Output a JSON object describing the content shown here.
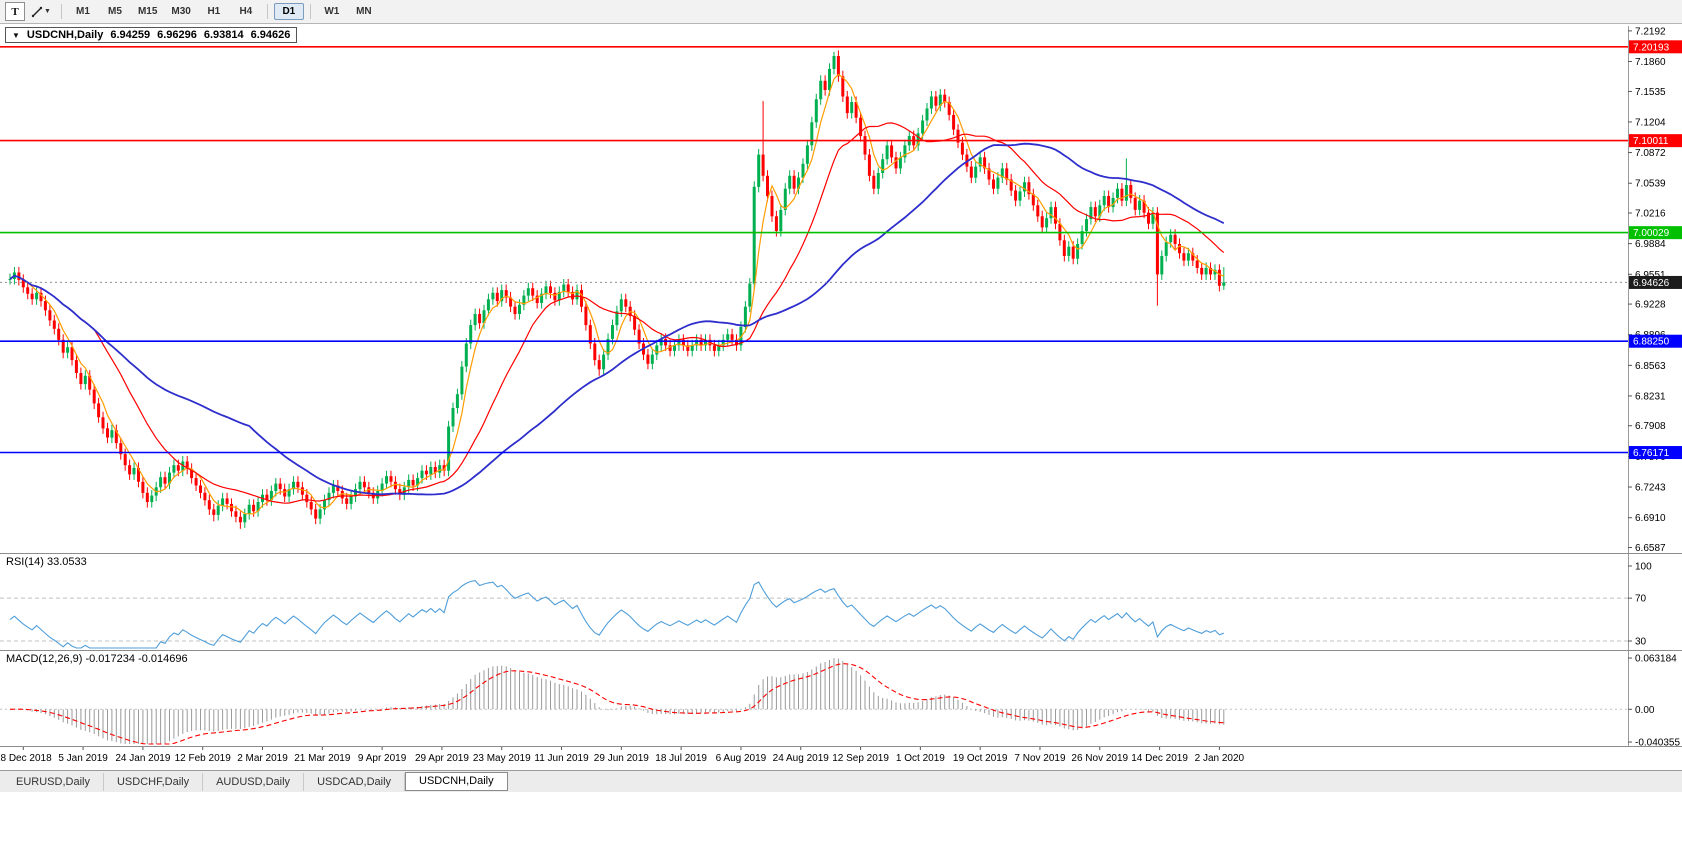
{
  "toolbar": {
    "tool_button_label": "T",
    "timeframes": [
      "M1",
      "M5",
      "M15",
      "M30",
      "H1",
      "H4",
      "D1",
      "W1",
      "MN"
    ],
    "active_timeframe": "D1"
  },
  "header": {
    "collapse_icon": "▼",
    "symbol": "USDCNH,Daily",
    "open": "6.94259",
    "high": "6.96296",
    "low": "6.93814",
    "close": "6.94626"
  },
  "chart_data": {
    "type": "candlestick",
    "symbol": "USDCNH",
    "timeframe": "Daily",
    "y_range": {
      "max": 7.2245,
      "min": 6.6538
    },
    "up_color": "#00b050",
    "down_color": "#ff0000",
    "default_wick": 0.006,
    "closes": [
      6.95,
      6.957,
      6.949,
      6.941,
      6.934,
      6.928,
      6.935,
      6.926,
      6.916,
      6.905,
      6.896,
      6.884,
      6.87,
      6.876,
      6.862,
      6.848,
      6.836,
      6.845,
      6.83,
      6.815,
      6.8,
      6.788,
      6.778,
      6.786,
      6.772,
      6.76,
      6.748,
      6.738,
      6.745,
      6.73,
      6.718,
      6.708,
      6.715,
      6.724,
      6.735,
      6.728,
      6.74,
      6.748,
      6.742,
      6.752,
      6.744,
      6.734,
      6.726,
      6.718,
      6.71,
      6.7,
      6.694,
      6.704,
      6.712,
      6.706,
      6.698,
      6.692,
      6.686,
      6.695,
      6.705,
      6.698,
      6.708,
      6.716,
      6.71,
      6.72,
      6.728,
      6.722,
      6.714,
      6.722,
      6.73,
      6.724,
      6.716,
      6.708,
      6.7,
      6.69,
      6.7,
      6.71,
      6.718,
      6.726,
      6.72,
      6.712,
      6.706,
      6.714,
      6.722,
      6.73,
      6.724,
      6.718,
      6.712,
      6.72,
      6.728,
      6.736,
      6.73,
      6.722,
      6.716,
      6.724,
      6.732,
      6.726,
      6.734,
      6.742,
      6.738,
      6.746,
      6.74,
      6.748,
      6.742,
      6.79,
      6.81,
      6.825,
      6.855,
      6.88,
      6.9,
      6.912,
      6.902,
      6.916,
      6.928,
      6.935,
      6.926,
      6.938,
      6.93,
      6.92,
      6.912,
      6.922,
      6.932,
      6.94,
      6.932,
      6.924,
      6.934,
      6.942,
      6.935,
      6.927,
      6.936,
      6.944,
      6.936,
      6.928,
      6.938,
      6.92,
      6.9,
      6.88,
      6.862,
      6.852,
      6.868,
      6.885,
      6.9,
      6.915,
      6.928,
      6.92,
      6.91,
      6.895,
      6.88,
      6.868,
      6.858,
      6.868,
      6.878,
      6.885,
      6.878,
      6.872,
      6.878,
      6.884,
      6.878,
      6.872,
      6.878,
      6.884,
      6.878,
      6.884,
      6.878,
      6.872,
      6.878,
      6.884,
      6.89,
      6.884,
      6.878,
      6.898,
      6.92,
      6.945,
      7.05,
      7.085,
      7.062,
      7.04,
      7.018,
      7.002,
      7.025,
      7.048,
      7.062,
      7.048,
      7.06,
      7.075,
      7.095,
      7.12,
      7.145,
      7.165,
      7.155,
      7.178,
      7.192,
      7.17,
      7.148,
      7.13,
      7.142,
      7.125,
      7.105,
      7.085,
      7.062,
      7.048,
      7.065,
      7.08,
      7.095,
      7.082,
      7.07,
      7.082,
      7.095,
      7.105,
      7.095,
      7.108,
      7.122,
      7.135,
      7.148,
      7.138,
      7.15,
      7.142,
      7.128,
      7.112,
      7.098,
      7.085,
      7.072,
      7.06,
      7.072,
      7.082,
      7.07,
      7.058,
      7.048,
      7.06,
      7.07,
      7.058,
      7.046,
      7.035,
      7.045,
      7.055,
      7.042,
      7.03,
      7.018,
      7.006,
      7.016,
      7.028,
      7.01,
      6.992,
      6.975,
      6.985,
      6.972,
      6.988,
      7.002,
      7.015,
      7.028,
      7.018,
      7.03,
      7.04,
      7.028,
      7.038,
      7.048,
      7.035,
      7.052,
      7.038,
      7.025,
      7.035,
      7.022,
      7.01,
      7.022,
      6.955,
      6.975,
      6.99,
      6.998,
      6.988,
      6.978,
      6.97,
      6.978,
      6.97,
      6.962,
      6.955,
      6.962,
      6.955,
      6.96,
      6.9426,
      6.9463
    ],
    "spikes": [
      {
        "i": 2,
        "h": 6.963
      },
      {
        "i": 46,
        "l": 6.687
      },
      {
        "i": 52,
        "l": 6.679
      },
      {
        "i": 69,
        "l": 6.684
      },
      {
        "i": 133,
        "l": 6.845
      },
      {
        "i": 170,
        "h": 7.143
      },
      {
        "i": 186,
        "h": 7.1965
      },
      {
        "i": 252,
        "h": 7.081
      },
      {
        "i": 259,
        "l": 6.921
      },
      {
        "i": 274,
        "h": 6.96296,
        "l": 6.93814
      }
    ],
    "levels": [
      {
        "price": 7.20193,
        "label": "7.20193",
        "color": "#ff0000"
      },
      {
        "price": 7.10011,
        "label": "7.10011",
        "color": "#ff0000"
      },
      {
        "price": 7.00029,
        "label": "7.00029",
        "color": "#00c000"
      },
      {
        "price": 6.8825,
        "label": "6.88250",
        "color": "#0000ff"
      },
      {
        "price": 6.76171,
        "label": "6.76171",
        "color": "#0000ff"
      }
    ],
    "current_price": {
      "value": 6.94626,
      "label": "6.94626",
      "line_color": "#909090",
      "badge_color": "#1c1c1c"
    },
    "moving_averages": [
      {
        "period": 5,
        "color": "#ff9d00"
      },
      {
        "period": 20,
        "color": "#ff0000"
      },
      {
        "period": 55,
        "color": "#2e2ecc"
      }
    ],
    "y_ticks": [
      "7.2192",
      "7.1860",
      "7.1535",
      "7.1204",
      "7.0872",
      "7.0539",
      "7.0216",
      "6.9884",
      "6.9551",
      "6.9228",
      "6.8896",
      "6.8563",
      "6.8231",
      "6.7908",
      "6.7576",
      "6.7243",
      "6.6910",
      "6.6587"
    ],
    "x_labels": [
      "18 Dec 2018",
      "5 Jan 2019",
      "24 Jan 2019",
      "12 Feb 2019",
      "2 Mar 2019",
      "21 Mar 2019",
      "9 Apr 2019",
      "29 Apr 2019",
      "23 May 2019",
      "11 Jun 2019",
      "29 Jun 2019",
      "18 Jul 2019",
      "6 Aug 2019",
      "24 Aug 2019",
      "12 Sep 2019",
      "1 Oct 2019",
      "19 Oct 2019",
      "7 Nov 2019",
      "26 Nov 2019",
      "14 Dec 2019",
      "2 Jan 2020"
    ],
    "indicators": [
      {
        "name": "RSI",
        "label": "RSI(14) 33.0533",
        "period": 14,
        "line_color": "#4f9ed9",
        "levels": [
          70,
          30
        ],
        "axis_ticks": [
          "100",
          "70",
          "30"
        ]
      },
      {
        "name": "MACD",
        "label": "MACD(12,26,9) -0.017234 -0.014696",
        "fast": 12,
        "slow": 26,
        "signal_period": 9,
        "histogram_color": "#9a9a9a",
        "signal_color": "#ff0000",
        "axis_ticks": [
          "0.063184",
          "0.00",
          "-0.040355"
        ]
      }
    ]
  },
  "tabs": {
    "items": [
      {
        "label": "EURUSD,Daily",
        "active": false
      },
      {
        "label": "USDCHF,Daily",
        "active": false
      },
      {
        "label": "AUDUSD,Daily",
        "active": false
      },
      {
        "label": "USDCAD,Daily",
        "active": false
      },
      {
        "label": "USDCNH,Daily",
        "active": true
      }
    ]
  }
}
